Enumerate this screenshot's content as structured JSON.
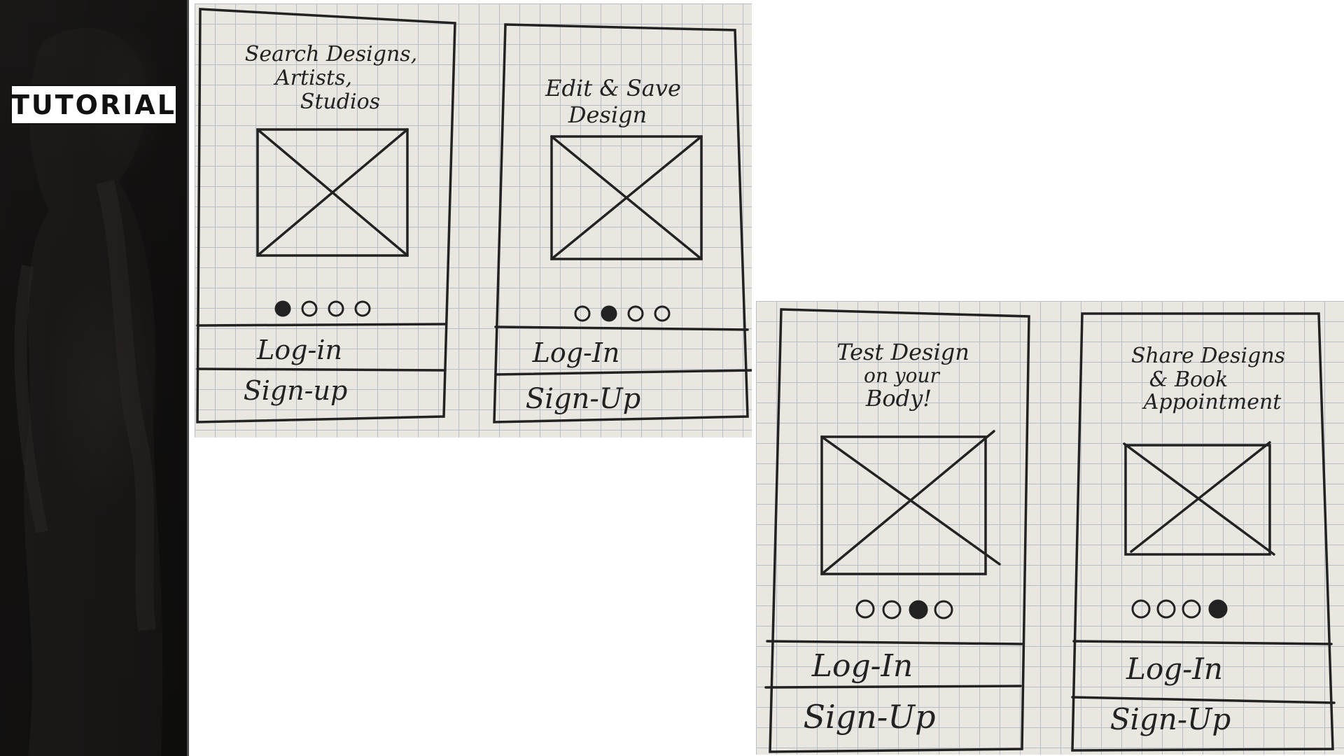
{
  "sidebar": {
    "label": "TUTORIAL"
  },
  "screens": [
    {
      "title_lines": [
        "Search Designs,",
        "Artists,",
        "Studios"
      ],
      "active_dot": 1,
      "login": "Log-in",
      "signup": "Sign-up"
    },
    {
      "title_lines": [
        "Edit & Save",
        "Design"
      ],
      "active_dot": 2,
      "login": "Log-In",
      "signup": "Sign-Up"
    },
    {
      "title_lines": [
        "Test Design",
        "on your",
        "Body!"
      ],
      "active_dot": 3,
      "login": "Log-In",
      "signup": "Sign-Up"
    },
    {
      "title_lines": [
        "Share Designs",
        "& Book",
        "Appointment"
      ],
      "active_dot": 4,
      "login": "Log-In",
      "signup": "Sign-Up"
    }
  ],
  "colors": {
    "paper": "#eae6e0",
    "grid": "#a9b6c4",
    "ink": "#222222",
    "sidebar": "#171514"
  }
}
